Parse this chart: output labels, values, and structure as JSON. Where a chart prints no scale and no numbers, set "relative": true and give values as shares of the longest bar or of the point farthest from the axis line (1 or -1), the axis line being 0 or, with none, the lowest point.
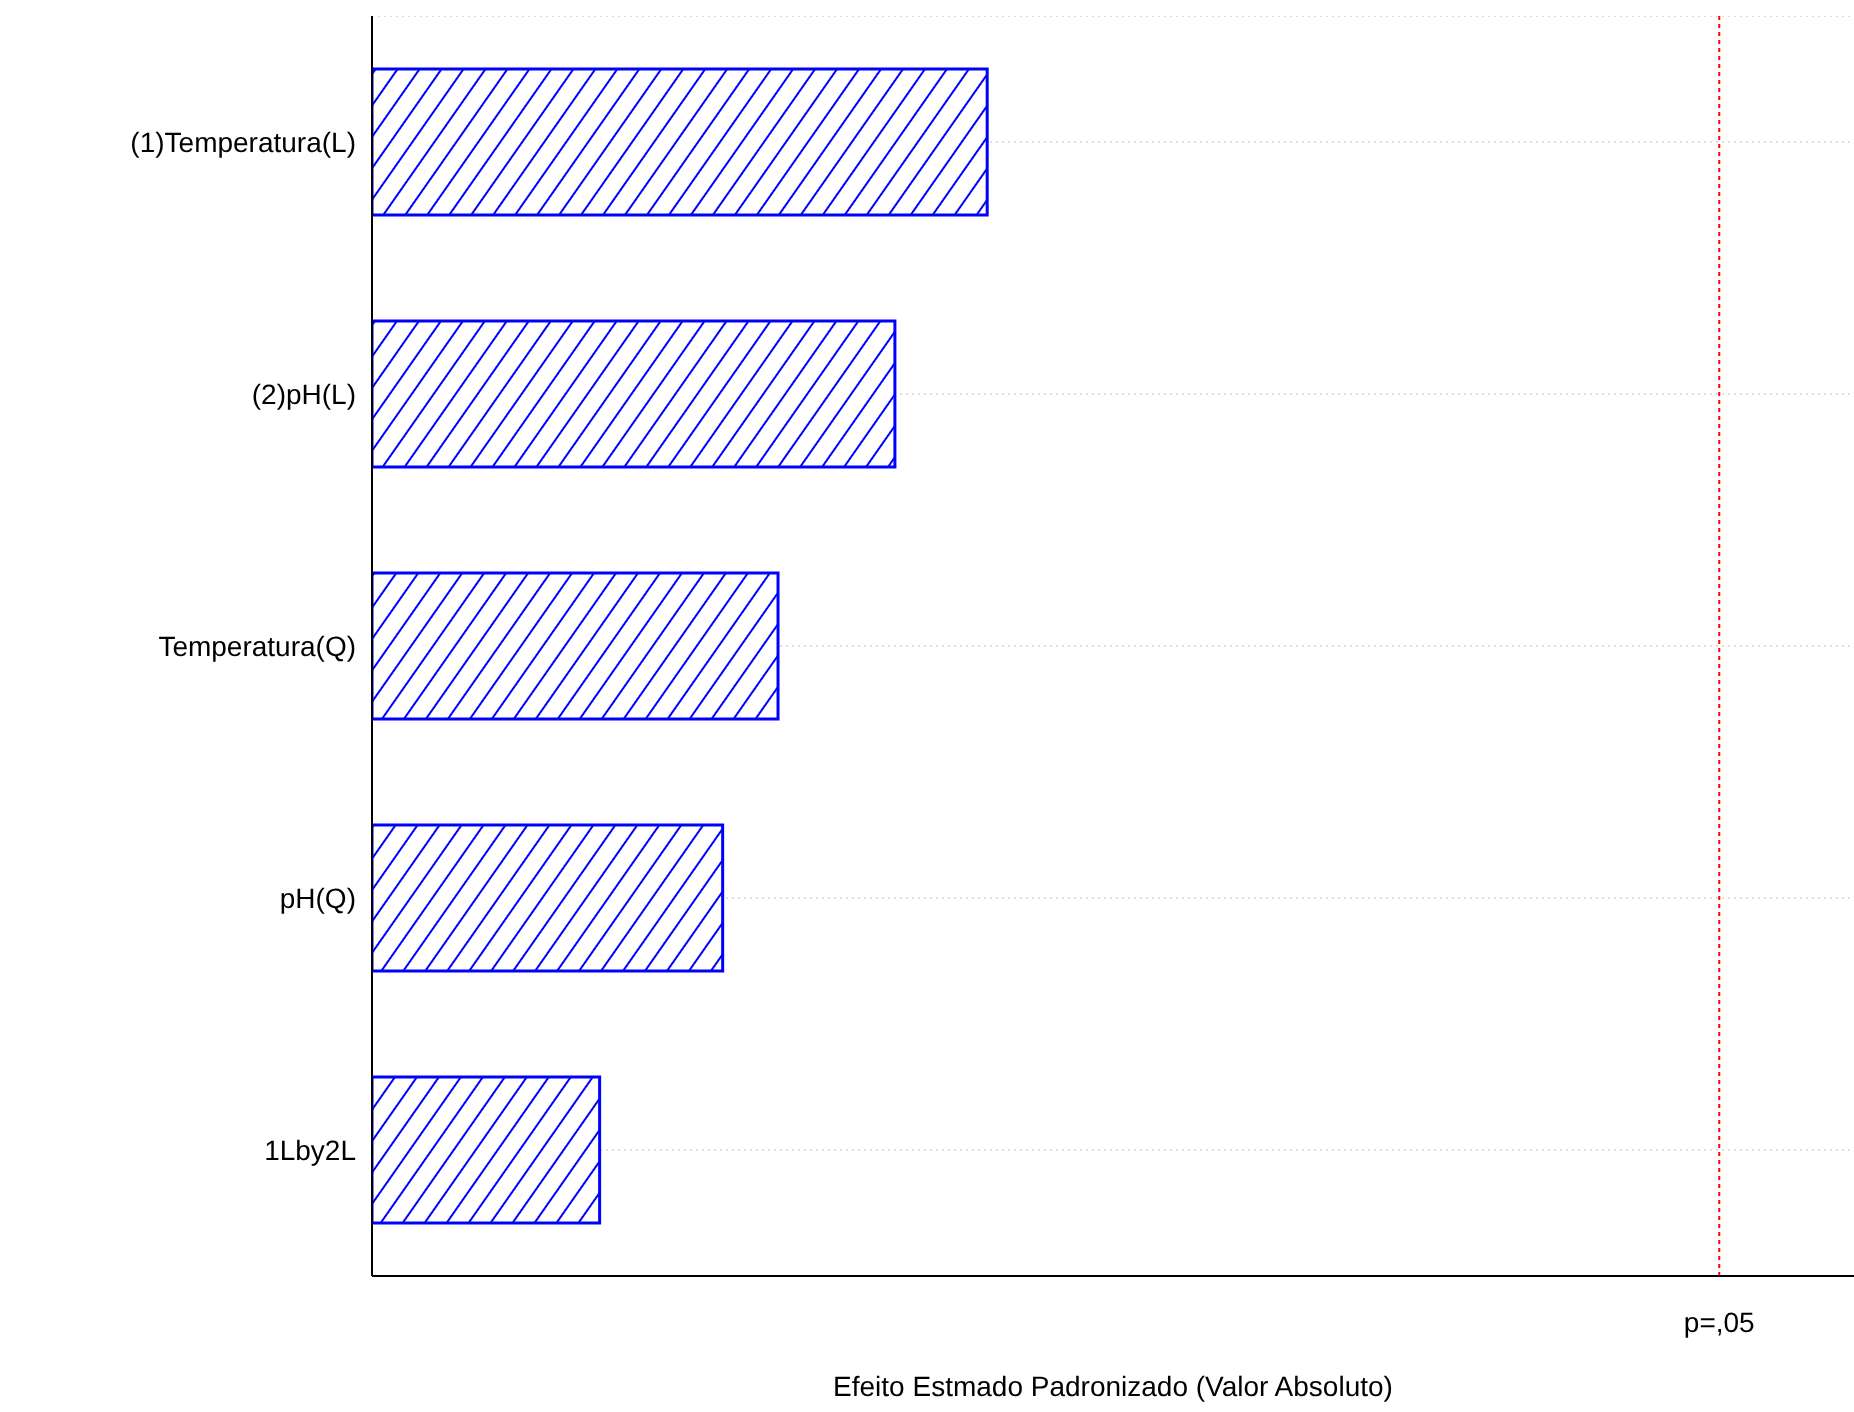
{
  "chart_data": {
    "type": "bar",
    "orientation": "horizontal",
    "relative": true,
    "categories": [
      "(1)Temperatura(L)",
      "(2)pH(L)",
      "Temperatura(Q)",
      "pH(Q)",
      "1Lby2L"
    ],
    "values": [
      1,
      0.85,
      0.66,
      0.57,
      0.37
    ],
    "color": "#0000ff",
    "xlabel": "Efeito Estmado Padronizado (Valor Absoluto)",
    "ref_lines": [
      {
        "axis": "x",
        "value": 2.19,
        "label": "p=,05",
        "color": "#ff0000",
        "line_style": "dotted"
      }
    ],
    "grid": "y"
  }
}
